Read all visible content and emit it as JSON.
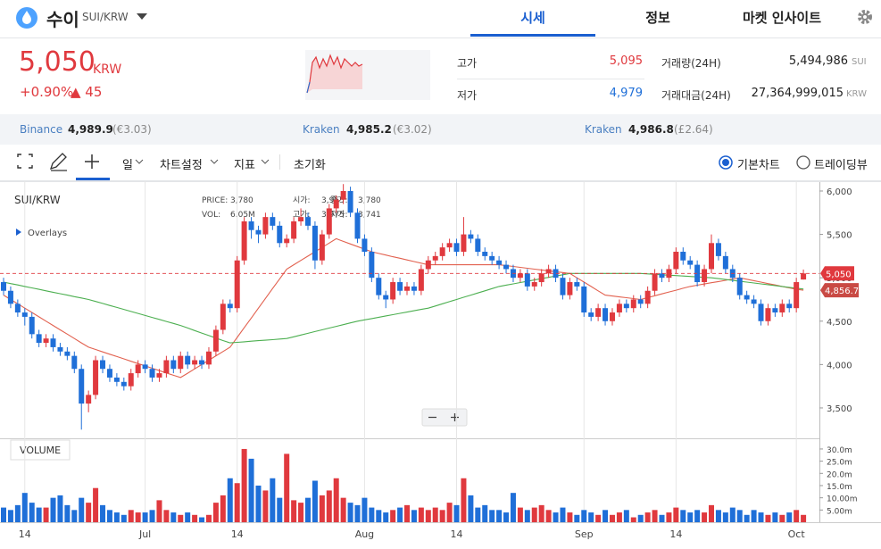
{
  "header": {
    "name": "수이",
    "pair": "SUI/KRW",
    "tabs": [
      "시세",
      "정보",
      "마켓 인사이트"
    ]
  },
  "price": {
    "value": "5,050",
    "unit": "KRW",
    "change_rate": "+0.90%",
    "change": "▲ 45"
  },
  "stats": {
    "high_label": "고가",
    "high": "5,095",
    "low_label": "저가",
    "low": "4,979",
    "volume_label": "거래량(24H)",
    "volume": "5,494,986",
    "volume_unit": "SUI",
    "amount_label": "거래대금(24H)",
    "amount": "27,364,999,015",
    "amount_unit": "KRW"
  },
  "exchanges": [
    {
      "name": "Binance",
      "price": "4,989.9",
      "fx": "(€3.03)"
    },
    {
      "name": "Kraken",
      "price": "4,985.2",
      "fx": "(€3.02)"
    },
    {
      "name": "Kraken",
      "price": "4,986.8",
      "fx": "(£2.64)"
    }
  ],
  "toolbar": {
    "period": "일",
    "settings": "차트설정",
    "indicators": "지표",
    "reset": "초기화",
    "basic_chart": "기본차트",
    "tradingview": "트레이딩뷰"
  },
  "chart_data": {
    "type": "candlestick",
    "title": "SUI/KRW",
    "overlays": "Overlays",
    "info": {
      "price_label": "PRICE:",
      "price": "3,780",
      "open_label": "시가:",
      "open": "3,955",
      "close_label": "종가:",
      "close": "3,780",
      "vol_label": "VOL:",
      "vol": "6.05M",
      "high_label": "고가:",
      "high": "3,975",
      "low_label": "저가:",
      "low": "3,741"
    },
    "up_color": "#e0393e",
    "down_color": "#1f6fd8",
    "categories": [
      null,
      null,
      null,
      "14",
      null,
      null,
      null,
      null,
      null,
      null,
      null,
      null,
      null,
      null,
      null,
      null,
      null,
      null,
      null,
      null,
      "Jul",
      null,
      null,
      null,
      null,
      null,
      null,
      null,
      null,
      null,
      null,
      null,
      null,
      "14",
      null,
      null,
      null,
      null,
      null,
      null,
      null,
      null,
      null,
      null,
      null,
      null,
      null,
      null,
      null,
      null,
      null,
      "Aug",
      null,
      null,
      null,
      null,
      null,
      null,
      null,
      null,
      null,
      null,
      null,
      null,
      "14",
      null,
      null,
      null,
      null,
      null,
      null,
      null,
      null,
      null,
      null,
      null,
      null,
      null,
      null,
      null,
      null,
      null,
      "Sep",
      null,
      null,
      null,
      null,
      null,
      null,
      null,
      null,
      null,
      null,
      null,
      null,
      "14",
      null,
      null,
      null,
      null,
      null,
      null,
      null,
      null,
      null,
      null,
      null,
      null,
      null,
      null,
      null,
      null,
      "Oct",
      null
    ],
    "open": [
      4950,
      4850,
      4700,
      4600,
      4550,
      4350,
      4250,
      4300,
      4200,
      4150,
      4100,
      3950,
      3550,
      3650,
      4050,
      3950,
      3850,
      3800,
      3750,
      3900,
      4000,
      3950,
      3850,
      3900,
      4050,
      3950,
      4100,
      4000,
      4050,
      4000,
      4150,
      4400,
      4700,
      4650,
      5200,
      5650,
      5550,
      5500,
      5700,
      5600,
      5400,
      5450,
      5650,
      5700,
      5600,
      5200,
      5500,
      5800,
      5900,
      6000,
      5750,
      5450,
      5300,
      5000,
      4800,
      4750,
      4950,
      4850,
      4900,
      4850,
      5100,
      5200,
      5250,
      5350,
      5400,
      5300,
      5500,
      5450,
      5300,
      5250,
      5200,
      5150,
      5100,
      5000,
      5050,
      4900,
      4950,
      5050,
      5100,
      5000,
      4800,
      4950,
      4900,
      4600,
      4550,
      4650,
      4500,
      4600,
      4700,
      4650,
      4750,
      4700,
      4850,
      5050,
      5000,
      5100,
      5300,
      5200,
      5150,
      4950,
      5100,
      5400,
      5250,
      5100,
      5000,
      4800,
      4750,
      4700,
      4500,
      4650,
      4600,
      4700,
      4650,
      4980
    ],
    "high": [
      5000,
      4900,
      4750,
      4650,
      4600,
      4400,
      4350,
      4350,
      4250,
      4200,
      4150,
      4000,
      3700,
      4100,
      4100,
      4000,
      3900,
      3850,
      3950,
      4050,
      4050,
      4000,
      3950,
      4100,
      4100,
      4150,
      4150,
      4100,
      4100,
      4200,
      4450,
      4750,
      4750,
      5250,
      5700,
      5700,
      5600,
      5750,
      5750,
      5650,
      5500,
      5700,
      5800,
      5750,
      5650,
      5550,
      5850,
      5950,
      6080,
      6050,
      5800,
      5500,
      5350,
      5050,
      4850,
      5000,
      5000,
      4950,
      4950,
      5150,
      5250,
      5300,
      5400,
      5450,
      5450,
      5700,
      5550,
      5500,
      5350,
      5300,
      5250,
      5200,
      5150,
      5100,
      5100,
      5000,
      5100,
      5150,
      5150,
      5050,
      5000,
      5000,
      4950,
      4650,
      4700,
      4700,
      4650,
      4750,
      4750,
      4800,
      4800,
      4900,
      5100,
      5100,
      5150,
      5350,
      5350,
      5250,
      5200,
      5150,
      5500,
      5450,
      5300,
      5150,
      5050,
      4850,
      4800,
      4750,
      4700,
      4700,
      4750,
      4750,
      5000,
      5095
    ],
    "low": [
      4800,
      4650,
      4550,
      4450,
      4300,
      4200,
      4200,
      4150,
      4100,
      4050,
      3900,
      3250,
      3450,
      3600,
      3900,
      3800,
      3750,
      3700,
      3700,
      3850,
      3900,
      3800,
      3800,
      3850,
      3900,
      3900,
      3950,
      3950,
      3950,
      3950,
      4100,
      4350,
      4600,
      4600,
      5150,
      5450,
      5400,
      5450,
      5550,
      5350,
      5350,
      5400,
      5600,
      5550,
      5100,
      5150,
      5450,
      5750,
      5850,
      5700,
      5400,
      5250,
      4950,
      4750,
      4650,
      4700,
      4800,
      4800,
      4800,
      4800,
      5050,
      5150,
      5200,
      5300,
      5250,
      5250,
      5400,
      5250,
      5200,
      5150,
      5100,
      5050,
      4950,
      4950,
      4850,
      4850,
      4900,
      5000,
      4950,
      4750,
      4750,
      4850,
      4550,
      4500,
      4500,
      4450,
      4450,
      4550,
      4600,
      4600,
      4650,
      4650,
      4800,
      4950,
      4950,
      5050,
      5150,
      5100,
      4900,
      4900,
      5050,
      5200,
      5050,
      4950,
      4750,
      4700,
      4650,
      4450,
      4450,
      4550,
      4550,
      4600,
      4600,
      4979
    ],
    "close": [
      4850,
      4700,
      4600,
      4550,
      4350,
      4250,
      4300,
      4200,
      4150,
      4100,
      3950,
      3550,
      3650,
      4050,
      3950,
      3850,
      3800,
      3750,
      3900,
      4000,
      3950,
      3850,
      3900,
      4050,
      3950,
      4100,
      4000,
      4050,
      4000,
      4150,
      4400,
      4700,
      4650,
      5200,
      5650,
      5550,
      5500,
      5700,
      5600,
      5400,
      5450,
      5650,
      5700,
      5600,
      5200,
      5500,
      5800,
      5900,
      6000,
      5750,
      5450,
      5300,
      5000,
      4800,
      4750,
      4950,
      4850,
      4900,
      4850,
      5100,
      5200,
      5250,
      5350,
      5400,
      5300,
      5500,
      5450,
      5300,
      5250,
      5200,
      5150,
      5100,
      5000,
      5050,
      4900,
      4950,
      5050,
      5100,
      5000,
      4800,
      4950,
      4900,
      4600,
      4550,
      4650,
      4500,
      4600,
      4700,
      4650,
      4750,
      4700,
      4850,
      5050,
      5000,
      5100,
      5300,
      5200,
      5150,
      4950,
      5100,
      5400,
      5250,
      5100,
      5000,
      4800,
      4750,
      4700,
      4500,
      4650,
      4600,
      4700,
      4650,
      4950,
      5050
    ],
    "lines": [
      {
        "color": "#e2614f",
        "values": [
          4800,
          4750,
          4700,
          4650,
          4600,
          4550,
          4500,
          4450,
          4400,
          4350,
          4300,
          4250,
          4200,
          4173,
          4146,
          4119,
          4092,
          4065,
          4038,
          4011,
          3984,
          3957,
          3930,
          3903,
          3876,
          3850,
          3900,
          3950,
          4000,
          4050,
          4100,
          4150,
          4200,
          4312,
          4425,
          4537,
          4650,
          4762,
          4875,
          4987,
          5100,
          5150,
          5200,
          5250,
          5300,
          5350,
          5400,
          5450,
          5420,
          5390,
          5360,
          5330,
          5300,
          5281,
          5262,
          5243,
          5225,
          5206,
          5187,
          5168,
          5150,
          5150,
          5150,
          5150,
          5150,
          5150,
          5150,
          5150,
          5150,
          5150,
          5150,
          5140,
          5130,
          5120,
          5110,
          5100,
          5090,
          5080,
          5070,
          5060,
          5050,
          5000,
          4950,
          4900,
          4850,
          4800,
          4790,
          4780,
          4770,
          4760,
          4750,
          4771,
          4793,
          4814,
          4836,
          4857,
          4879,
          4900,
          4914,
          4929,
          4943,
          4957,
          4971,
          4986,
          5000,
          4983,
          4967,
          4950,
          4933,
          4917,
          4900,
          4883,
          4867,
          4856.7
        ]
      },
      {
        "color": "#4caf50",
        "values": [
          4950,
          4933,
          4917,
          4900,
          4883,
          4867,
          4850,
          4833,
          4817,
          4800,
          4783,
          4767,
          4750,
          4727,
          4704,
          4681,
          4658,
          4635,
          4612,
          4589,
          4566,
          4543,
          4520,
          4497,
          4474,
          4450,
          4421,
          4392,
          4363,
          4334,
          4305,
          4276,
          4250,
          4256,
          4262,
          4269,
          4275,
          4281,
          4287,
          4294,
          4300,
          4320,
          4340,
          4360,
          4380,
          4400,
          4420,
          4440,
          4460,
          4480,
          4500,
          4515,
          4530,
          4545,
          4560,
          4575,
          4590,
          4605,
          4620,
          4635,
          4650,
          4675,
          4700,
          4725,
          4750,
          4775,
          4800,
          4825,
          4850,
          4875,
          4900,
          4915,
          4930,
          4945,
          4960,
          4975,
          4990,
          5005,
          5020,
          5035,
          5050,
          5050,
          5050,
          5050,
          5050,
          5050,
          5050,
          5050,
          5050,
          5050,
          5050,
          5045,
          5040,
          5035,
          5030,
          5025,
          5020,
          5015,
          5010,
          5005,
          5000,
          4990,
          4980,
          4970,
          4960,
          4950,
          4940,
          4930,
          4920,
          4910,
          4900,
          4890,
          4880,
          4870
        ]
      }
    ],
    "price_line": {
      "value": 5050,
      "label": "5,050",
      "color": "#e0393e"
    },
    "ma_tag": {
      "value": 4856.7,
      "label": "4,856.7",
      "color": "#c94a44"
    },
    "ylim": [
      3160,
      6113
    ],
    "yticks": [
      {
        "value": 3500,
        "label": "3,500"
      },
      {
        "value": 4000,
        "label": "4,000"
      },
      {
        "value": 4500,
        "label": "4,500"
      },
      {
        "value": 5000,
        "label": "5,000"
      },
      {
        "value": 5500,
        "label": "5,500"
      },
      {
        "value": 6000,
        "label": "6,000"
      }
    ],
    "volume": {
      "label": "VOLUME",
      "ylim": [
        0,
        34
      ],
      "yticks": [
        {
          "value": 5,
          "label": "5.00m"
        },
        {
          "value": 10,
          "label": "10.00m"
        },
        {
          "value": 15,
          "label": "15.0m"
        },
        {
          "value": 20,
          "label": "20.0m"
        },
        {
          "value": 25,
          "label": "25.0m"
        },
        {
          "value": 30,
          "label": "30.0m"
        }
      ],
      "values": [
        6,
        5,
        7,
        12,
        8,
        6,
        6,
        10,
        11,
        7,
        5,
        10,
        8,
        14,
        7,
        5,
        4,
        3,
        5,
        4,
        4,
        5,
        9,
        5,
        4,
        3,
        4,
        3,
        2,
        3,
        8,
        11,
        18,
        16,
        30,
        26,
        15,
        13,
        18,
        10,
        28,
        9,
        8,
        10,
        17,
        11,
        13,
        18,
        10,
        8,
        7,
        10,
        6,
        5,
        4,
        5,
        6,
        7,
        5,
        6,
        5,
        6,
        5,
        8,
        7,
        18,
        11,
        6,
        7,
        5,
        5,
        4,
        12,
        6,
        5,
        6,
        7,
        5,
        4,
        6,
        4,
        3,
        5,
        4,
        3,
        5,
        3,
        4,
        5,
        2,
        3,
        4,
        5,
        3,
        4,
        6,
        5,
        4,
        5,
        4,
        7,
        5,
        4,
        6,
        5,
        3,
        5,
        4,
        3,
        4,
        3,
        4,
        5,
        3
      ]
    }
  }
}
